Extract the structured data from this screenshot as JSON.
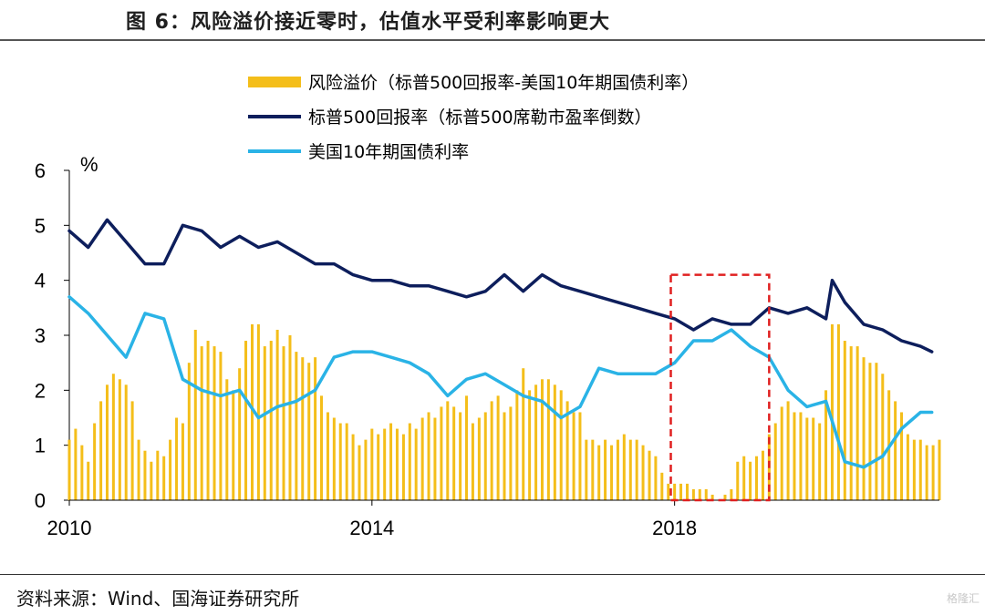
{
  "title": "图 6：风险溢价接近零时，估值水平受利率影响更大",
  "source": "资料来源：Wind、国海证券研究所",
  "watermark": "格隆汇",
  "chart_data": {
    "type": "bar+line",
    "ylabel": "%",
    "ylim": [
      0,
      6
    ],
    "y_ticks": [
      "0",
      "1",
      "2",
      "3",
      "4",
      "5",
      "6"
    ],
    "x_ticks": [
      "2010",
      "2014",
      "2018"
    ],
    "x_range": [
      2010.0,
      2021.5
    ],
    "legend_position": "top-center",
    "colors": {
      "premium": "#F4BE1A",
      "sp_yield": "#0D1E5C",
      "treasury": "#2AB3E6",
      "highlight": "#E02020"
    },
    "highlight_box": {
      "x_start": 2017.95,
      "x_end": 2019.25,
      "y_start": 0,
      "y_end": 4.1
    },
    "series": [
      {
        "name": "风险溢价（标普500回报率-美国10年期国债利率）",
        "kind": "bar",
        "x": [
          2010.0,
          2010.083,
          2010.167,
          2010.25,
          2010.333,
          2010.417,
          2010.5,
          2010.583,
          2010.667,
          2010.75,
          2010.833,
          2010.917,
          2011.0,
          2011.083,
          2011.167,
          2011.25,
          2011.333,
          2011.417,
          2011.5,
          2011.583,
          2011.667,
          2011.75,
          2011.833,
          2011.917,
          2012.0,
          2012.083,
          2012.167,
          2012.25,
          2012.333,
          2012.417,
          2012.5,
          2012.583,
          2012.667,
          2012.75,
          2012.833,
          2012.917,
          2013.0,
          2013.083,
          2013.167,
          2013.25,
          2013.333,
          2013.417,
          2013.5,
          2013.583,
          2013.667,
          2013.75,
          2013.833,
          2013.917,
          2014.0,
          2014.083,
          2014.167,
          2014.25,
          2014.333,
          2014.417,
          2014.5,
          2014.583,
          2014.667,
          2014.75,
          2014.833,
          2014.917,
          2015.0,
          2015.083,
          2015.167,
          2015.25,
          2015.333,
          2015.417,
          2015.5,
          2015.583,
          2015.667,
          2015.75,
          2015.833,
          2015.917,
          2016.0,
          2016.083,
          2016.167,
          2016.25,
          2016.333,
          2016.417,
          2016.5,
          2016.583,
          2016.667,
          2016.75,
          2016.833,
          2016.917,
          2017.0,
          2017.083,
          2017.167,
          2017.25,
          2017.333,
          2017.417,
          2017.5,
          2017.583,
          2017.667,
          2017.75,
          2017.833,
          2017.917,
          2018.0,
          2018.083,
          2018.167,
          2018.25,
          2018.333,
          2018.417,
          2018.5,
          2018.583,
          2018.667,
          2018.75,
          2018.833,
          2018.917,
          2019.0,
          2019.083,
          2019.167,
          2019.25,
          2019.333,
          2019.417,
          2019.5,
          2019.583,
          2019.667,
          2019.75,
          2019.833,
          2019.917,
          2020.0,
          2020.083,
          2020.167,
          2020.25,
          2020.333,
          2020.417,
          2020.5,
          2020.583,
          2020.667,
          2020.75,
          2020.833,
          2020.917,
          2021.0,
          2021.083,
          2021.167,
          2021.25,
          2021.333,
          2021.417,
          2021.5
        ],
        "values": [
          1.1,
          1.3,
          1.0,
          0.7,
          1.4,
          1.8,
          2.1,
          2.3,
          2.2,
          2.1,
          1.8,
          1.1,
          0.9,
          0.7,
          0.9,
          0.8,
          1.1,
          1.5,
          1.4,
          2.5,
          3.1,
          2.8,
          2.9,
          2.8,
          2.7,
          2.2,
          2.0,
          2.4,
          2.9,
          3.2,
          3.2,
          2.8,
          2.9,
          3.1,
          2.8,
          3.0,
          2.7,
          2.6,
          2.5,
          2.6,
          1.9,
          1.6,
          1.5,
          1.4,
          1.4,
          1.2,
          1.0,
          1.1,
          1.3,
          1.2,
          1.3,
          1.4,
          1.3,
          1.2,
          1.4,
          1.3,
          1.5,
          1.6,
          1.5,
          1.7,
          1.8,
          1.7,
          1.6,
          1.9,
          1.4,
          1.5,
          1.6,
          1.8,
          1.9,
          1.6,
          1.7,
          2.0,
          2.4,
          2.0,
          2.1,
          2.2,
          2.2,
          2.1,
          2.0,
          1.8,
          1.6,
          1.6,
          1.1,
          1.1,
          1.0,
          1.1,
          1.0,
          1.1,
          1.2,
          1.1,
          1.1,
          1.0,
          0.9,
          0.8,
          0.5,
          0.3,
          0.3,
          0.3,
          0.3,
          0.2,
          0.2,
          0.2,
          0.1,
          0.0,
          0.1,
          0.2,
          0.7,
          0.8,
          0.7,
          0.8,
          0.9,
          1.2,
          1.4,
          1.7,
          1.8,
          1.6,
          1.6,
          1.5,
          1.5,
          1.4,
          2.0,
          3.2,
          3.2,
          2.9,
          2.8,
          2.8,
          2.6,
          2.5,
          2.5,
          2.3,
          2.0,
          1.8,
          1.6,
          1.2,
          1.1,
          1.1,
          1.0,
          1.0,
          1.1
        ]
      },
      {
        "name": "标普500回报率（标普500席勒市盈率倒数）",
        "kind": "line",
        "x": [
          2010.0,
          2010.25,
          2010.5,
          2010.75,
          2011.0,
          2011.25,
          2011.5,
          2011.75,
          2012.0,
          2012.25,
          2012.5,
          2012.75,
          2013.0,
          2013.25,
          2013.5,
          2013.75,
          2014.0,
          2014.25,
          2014.5,
          2014.75,
          2015.0,
          2015.25,
          2015.5,
          2015.75,
          2016.0,
          2016.25,
          2016.5,
          2016.75,
          2017.0,
          2017.25,
          2017.5,
          2017.75,
          2018.0,
          2018.25,
          2018.5,
          2018.75,
          2019.0,
          2019.25,
          2019.5,
          2019.75,
          2020.0,
          2020.083,
          2020.25,
          2020.5,
          2020.75,
          2021.0,
          2021.25,
          2021.4
        ],
        "values": [
          4.9,
          4.6,
          5.1,
          4.7,
          4.3,
          4.3,
          5.0,
          4.9,
          4.6,
          4.8,
          4.6,
          4.7,
          4.5,
          4.3,
          4.3,
          4.1,
          4.0,
          4.0,
          3.9,
          3.9,
          3.8,
          3.7,
          3.8,
          4.1,
          3.8,
          4.1,
          3.9,
          3.8,
          3.7,
          3.6,
          3.5,
          3.4,
          3.3,
          3.1,
          3.3,
          3.2,
          3.2,
          3.5,
          3.4,
          3.5,
          3.3,
          4.0,
          3.6,
          3.2,
          3.1,
          2.9,
          2.8,
          2.7
        ]
      },
      {
        "name": "美国10年期国债利率",
        "kind": "line",
        "x": [
          2010.0,
          2010.25,
          2010.5,
          2010.75,
          2011.0,
          2011.25,
          2011.5,
          2011.75,
          2012.0,
          2012.25,
          2012.5,
          2012.75,
          2013.0,
          2013.25,
          2013.5,
          2013.75,
          2014.0,
          2014.25,
          2014.5,
          2014.75,
          2015.0,
          2015.25,
          2015.5,
          2015.75,
          2016.0,
          2016.25,
          2016.5,
          2016.75,
          2017.0,
          2017.25,
          2017.5,
          2017.75,
          2018.0,
          2018.25,
          2018.5,
          2018.75,
          2019.0,
          2019.25,
          2019.5,
          2019.75,
          2020.0,
          2020.25,
          2020.5,
          2020.75,
          2021.0,
          2021.25,
          2021.4
        ],
        "values": [
          3.7,
          3.4,
          3.0,
          2.6,
          3.4,
          3.3,
          2.2,
          2.0,
          1.9,
          2.0,
          1.5,
          1.7,
          1.8,
          2.0,
          2.6,
          2.7,
          2.7,
          2.6,
          2.5,
          2.3,
          1.9,
          2.2,
          2.3,
          2.1,
          1.9,
          1.8,
          1.5,
          1.7,
          2.4,
          2.3,
          2.3,
          2.3,
          2.5,
          2.9,
          2.9,
          3.1,
          2.8,
          2.6,
          2.0,
          1.7,
          1.8,
          0.7,
          0.6,
          0.8,
          1.3,
          1.6,
          1.6
        ]
      }
    ]
  }
}
